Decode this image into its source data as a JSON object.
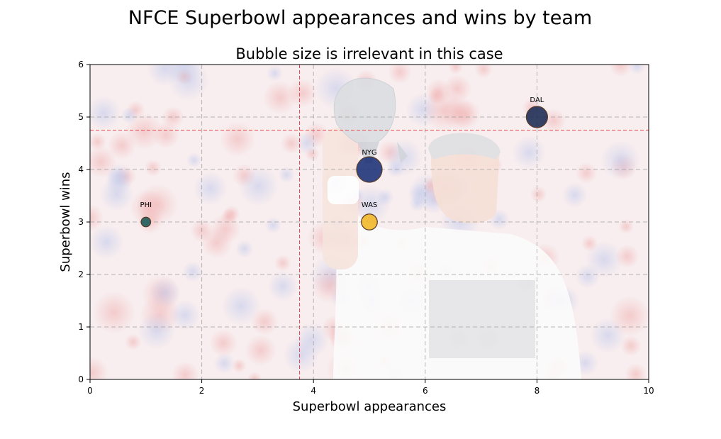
{
  "figure": {
    "suptitle": "NFCE Superbowl appearances and wins by team"
  },
  "chart_data": {
    "type": "scatter",
    "title": "Bubble size is irrelevant in this case",
    "xlabel": "Superbowl appearances",
    "ylabel": "Superbowl wins",
    "xlim": [
      0,
      10
    ],
    "ylim": [
      0,
      6
    ],
    "xticks": [
      0,
      2,
      4,
      6,
      8,
      10
    ],
    "yticks": [
      0,
      1,
      2,
      3,
      4,
      5,
      6
    ],
    "grid": true,
    "background_photo": "faded photo of a smiling player in a white Super Bowl Champions shirt raising a silver trophy in front of a blurred red-white-blue crowd",
    "reference_lines": {
      "vertical_x": 3.75,
      "horizontal_y": 4.75,
      "color": "#e8474c"
    },
    "points": [
      {
        "label": "DAL",
        "x": 8,
        "y": 5,
        "size": 1.0,
        "color": "#1f2d55"
      },
      {
        "label": "NYG",
        "x": 5,
        "y": 4,
        "size": 1.2,
        "color": "#1f3478"
      },
      {
        "label": "WAS",
        "x": 5,
        "y": 3,
        "size": 0.75,
        "color": "#f2b82a"
      },
      {
        "label": "PHI",
        "x": 1,
        "y": 3,
        "size": 0.45,
        "color": "#1e5c5a"
      }
    ]
  }
}
